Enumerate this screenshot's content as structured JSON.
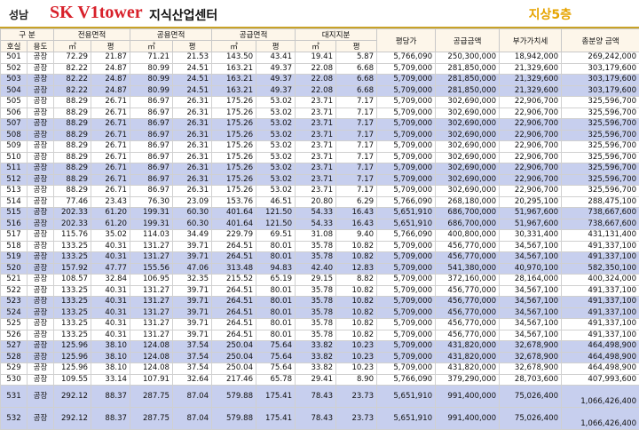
{
  "header": {
    "region": "성남",
    "brand": "SK V1tower",
    "subtitle": "지식산업센터",
    "floor": "지상5층"
  },
  "table": {
    "group_headers": [
      "구 분",
      "전용면적",
      "공용면적",
      "공급면적",
      "대지지분",
      "평당가",
      "공급금액",
      "부가가치세",
      "총분양 금액"
    ],
    "sub_headers": [
      "호실",
      "용도",
      "㎡",
      "평",
      "㎡",
      "평",
      "㎡",
      "평",
      "㎡",
      "평"
    ],
    "rows": [
      [
        "501",
        "공장",
        "72.29",
        "21.87",
        "71.21",
        "21.53",
        "143.50",
        "43.41",
        "19.41",
        "5.87",
        "5,766,090",
        "250,300,000",
        "18,942,000",
        "269,242,000"
      ],
      [
        "502",
        "공장",
        "82.22",
        "24.87",
        "80.99",
        "24.51",
        "163.21",
        "49.37",
        "22.08",
        "6.68",
        "5,709,000",
        "281,850,000",
        "21,329,600",
        "303,179,600"
      ],
      [
        "503",
        "공장",
        "82.22",
        "24.87",
        "80.99",
        "24.51",
        "163.21",
        "49.37",
        "22.08",
        "6.68",
        "5,709,000",
        "281,850,000",
        "21,329,600",
        "303,179,600"
      ],
      [
        "504",
        "공장",
        "82.22",
        "24.87",
        "80.99",
        "24.51",
        "163.21",
        "49.37",
        "22.08",
        "6.68",
        "5,709,000",
        "281,850,000",
        "21,329,600",
        "303,179,600"
      ],
      [
        "505",
        "공장",
        "88.29",
        "26.71",
        "86.97",
        "26.31",
        "175.26",
        "53.02",
        "23.71",
        "7.17",
        "5,709,000",
        "302,690,000",
        "22,906,700",
        "325,596,700"
      ],
      [
        "506",
        "공장",
        "88.29",
        "26.71",
        "86.97",
        "26.31",
        "175.26",
        "53.02",
        "23.71",
        "7.17",
        "5,709,000",
        "302,690,000",
        "22,906,700",
        "325,596,700"
      ],
      [
        "507",
        "공장",
        "88.29",
        "26.71",
        "86.97",
        "26.31",
        "175.26",
        "53.02",
        "23.71",
        "7.17",
        "5,709,000",
        "302,690,000",
        "22,906,700",
        "325,596,700"
      ],
      [
        "508",
        "공장",
        "88.29",
        "26.71",
        "86.97",
        "26.31",
        "175.26",
        "53.02",
        "23.71",
        "7.17",
        "5,709,000",
        "302,690,000",
        "22,906,700",
        "325,596,700"
      ],
      [
        "509",
        "공장",
        "88.29",
        "26.71",
        "86.97",
        "26.31",
        "175.26",
        "53.02",
        "23.71",
        "7.17",
        "5,709,000",
        "302,690,000",
        "22,906,700",
        "325,596,700"
      ],
      [
        "510",
        "공장",
        "88.29",
        "26.71",
        "86.97",
        "26.31",
        "175.26",
        "53.02",
        "23.71",
        "7.17",
        "5,709,000",
        "302,690,000",
        "22,906,700",
        "325,596,700"
      ],
      [
        "511",
        "공장",
        "88.29",
        "26.71",
        "86.97",
        "26.31",
        "175.26",
        "53.02",
        "23.71",
        "7.17",
        "5,709,000",
        "302,690,000",
        "22,906,700",
        "325,596,700"
      ],
      [
        "512",
        "공장",
        "88.29",
        "26.71",
        "86.97",
        "26.31",
        "175.26",
        "53.02",
        "23.71",
        "7.17",
        "5,709,000",
        "302,690,000",
        "22,906,700",
        "325,596,700"
      ],
      [
        "513",
        "공장",
        "88.29",
        "26.71",
        "86.97",
        "26.31",
        "175.26",
        "53.02",
        "23.71",
        "7.17",
        "5,709,000",
        "302,690,000",
        "22,906,700",
        "325,596,700"
      ],
      [
        "514",
        "공장",
        "77.46",
        "23.43",
        "76.30",
        "23.09",
        "153.76",
        "46.51",
        "20.80",
        "6.29",
        "5,766,090",
        "268,180,000",
        "20,295,100",
        "288,475,100"
      ],
      [
        "515",
        "공장",
        "202.33",
        "61.20",
        "199.31",
        "60.30",
        "401.64",
        "121.50",
        "54.33",
        "16.43",
        "5,651,910",
        "686,700,000",
        "51,967,600",
        "738,667,600"
      ],
      [
        "516",
        "공장",
        "202.33",
        "61.20",
        "199.31",
        "60.30",
        "401.64",
        "121.50",
        "54.33",
        "16.43",
        "5,651,910",
        "686,700,000",
        "51,967,600",
        "738,667,600"
      ],
      [
        "517",
        "공장",
        "115.76",
        "35.02",
        "114.03",
        "34.49",
        "229.79",
        "69.51",
        "31.08",
        "9.40",
        "5,766,090",
        "400,800,000",
        "30,331,400",
        "431,131,400"
      ],
      [
        "518",
        "공장",
        "133.25",
        "40.31",
        "131.27",
        "39.71",
        "264.51",
        "80.01",
        "35.78",
        "10.82",
        "5,709,000",
        "456,770,000",
        "34,567,100",
        "491,337,100"
      ],
      [
        "519",
        "공장",
        "133.25",
        "40.31",
        "131.27",
        "39.71",
        "264.51",
        "80.01",
        "35.78",
        "10.82",
        "5,709,000",
        "456,770,000",
        "34,567,100",
        "491,337,100"
      ],
      [
        "520",
        "공장",
        "157.92",
        "47.77",
        "155.56",
        "47.06",
        "313.48",
        "94.83",
        "42.40",
        "12.83",
        "5,709,000",
        "541,380,000",
        "40,970,100",
        "582,350,100"
      ],
      [
        "521",
        "공장",
        "108.57",
        "32.84",
        "106.95",
        "32.35",
        "215.52",
        "65.19",
        "29.15",
        "8.82",
        "5,709,000",
        "372,160,000",
        "28,164,000",
        "400,324,000"
      ],
      [
        "522",
        "공장",
        "133.25",
        "40.31",
        "131.27",
        "39.71",
        "264.51",
        "80.01",
        "35.78",
        "10.82",
        "5,709,000",
        "456,770,000",
        "34,567,100",
        "491,337,100"
      ],
      [
        "523",
        "공장",
        "133.25",
        "40.31",
        "131.27",
        "39.71",
        "264.51",
        "80.01",
        "35.78",
        "10.82",
        "5,709,000",
        "456,770,000",
        "34,567,100",
        "491,337,100"
      ],
      [
        "524",
        "공장",
        "133.25",
        "40.31",
        "131.27",
        "39.71",
        "264.51",
        "80.01",
        "35.78",
        "10.82",
        "5,709,000",
        "456,770,000",
        "34,567,100",
        "491,337,100"
      ],
      [
        "525",
        "공장",
        "133.25",
        "40.31",
        "131.27",
        "39.71",
        "264.51",
        "80.01",
        "35.78",
        "10.82",
        "5,709,000",
        "456,770,000",
        "34,567,100",
        "491,337,100"
      ],
      [
        "526",
        "공장",
        "133.25",
        "40.31",
        "131.27",
        "39.71",
        "264.51",
        "80.01",
        "35.78",
        "10.82",
        "5,709,000",
        "456,770,000",
        "34,567,100",
        "491,337,100"
      ],
      [
        "527",
        "공장",
        "125.96",
        "38.10",
        "124.08",
        "37.54",
        "250.04",
        "75.64",
        "33.82",
        "10.23",
        "5,709,000",
        "431,820,000",
        "32,678,900",
        "464,498,900"
      ],
      [
        "528",
        "공장",
        "125.96",
        "38.10",
        "124.08",
        "37.54",
        "250.04",
        "75.64",
        "33.82",
        "10.23",
        "5,709,000",
        "431,820,000",
        "32,678,900",
        "464,498,900"
      ],
      [
        "529",
        "공장",
        "125.96",
        "38.10",
        "124.08",
        "37.54",
        "250.04",
        "75.64",
        "33.82",
        "10.23",
        "5,709,000",
        "431,820,000",
        "32,678,900",
        "464,498,900"
      ],
      [
        "530",
        "공장",
        "109.55",
        "33.14",
        "107.91",
        "32.64",
        "217.46",
        "65.78",
        "29.41",
        "8.90",
        "5,766,090",
        "379,290,000",
        "28,703,600",
        "407,993,600"
      ],
      [
        "531",
        "공장",
        "292.12",
        "88.37",
        "287.75",
        "87.04",
        "579.88",
        "175.41",
        "78.43",
        "23.73",
        "5,651,910",
        "991,400,000",
        "75,026,400",
        "1,066,426,400"
      ],
      [
        "532",
        "공장",
        "292.12",
        "88.37",
        "287.75",
        "87.04",
        "579.88",
        "175.41",
        "78.43",
        "23.73",
        "5,651,910",
        "991,400,000",
        "75,026,400",
        "1,066,426,400"
      ]
    ]
  }
}
